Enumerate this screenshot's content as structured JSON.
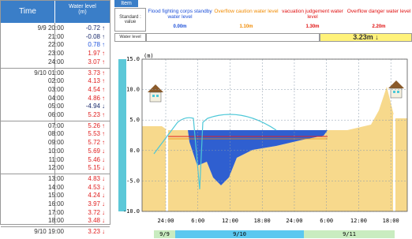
{
  "table": {
    "headers": [
      "Time",
      "Water level",
      "(m)"
    ],
    "rows": [
      {
        "time": "9/9 20:00",
        "level": "-0.72",
        "trend": "↑",
        "color": "#1a2a6c"
      },
      {
        "time": "21:00",
        "level": "-0.08",
        "trend": "↑",
        "color": "#1a2a6c"
      },
      {
        "time": "22:00",
        "level": "0.78",
        "trend": "↑",
        "color": "#2255dd"
      },
      {
        "time": "23:00",
        "level": "1.97",
        "trend": "↑",
        "color": "#e02020"
      },
      {
        "time": "24:00",
        "level": "3.07",
        "trend": "↑",
        "color": "#e02020"
      },
      {
        "time": "9/10 01:00",
        "level": "3.73",
        "trend": "↑",
        "color": "#e02020"
      },
      {
        "time": "02:00",
        "level": "4.13",
        "trend": "↑",
        "color": "#e02020"
      },
      {
        "time": "03:00",
        "level": "4.54",
        "trend": "↑",
        "color": "#e02020"
      },
      {
        "time": "04:00",
        "level": "4.86",
        "trend": "↑",
        "color": "#e02020"
      },
      {
        "time": "05:00",
        "level": "-4.94",
        "trend": "↓",
        "color": "#1a2a6c"
      },
      {
        "time": "06:00",
        "level": "5.23",
        "trend": "↑",
        "color": "#e02020"
      },
      {
        "time": "07:00",
        "level": "5.26",
        "trend": "↑",
        "color": "#e02020"
      },
      {
        "time": "08:00",
        "level": "5.53",
        "trend": "↑",
        "color": "#e02020"
      },
      {
        "time": "09:00",
        "level": "5.72",
        "trend": "↑",
        "color": "#e02020"
      },
      {
        "time": "10:00",
        "level": "5.69",
        "trend": "↓",
        "color": "#e02020"
      },
      {
        "time": "11:00",
        "level": "5.46",
        "trend": "↓",
        "color": "#e02020"
      },
      {
        "time": "12:00",
        "level": "5.15",
        "trend": "↓",
        "color": "#e02020"
      },
      {
        "time": "13:00",
        "level": "4.83",
        "trend": "↓",
        "color": "#e02020"
      },
      {
        "time": "14:00",
        "level": "4.53",
        "trend": "↓",
        "color": "#e02020"
      },
      {
        "time": "15:00",
        "level": "4.24",
        "trend": "↓",
        "color": "#e02020"
      },
      {
        "time": "16:00",
        "level": "3.97",
        "trend": "↓",
        "color": "#e02020"
      },
      {
        "time": "17:00",
        "level": "3.72",
        "trend": "↓",
        "color": "#e02020"
      },
      {
        "time": "18:00",
        "level": "3.48",
        "trend": "↓",
        "color": "#e02020"
      },
      {
        "time": "9/10 19:00",
        "level": "3.23",
        "trend": "↓",
        "color": "#e02020"
      }
    ]
  },
  "header": {
    "item": "Item",
    "standard": "Standard : value",
    "levels": [
      {
        "label": "Flood fighting corps standby water level",
        "value": "0.00m",
        "color": "#1c4fd8"
      },
      {
        "label": "Overflow caution water level",
        "value": "1.10m",
        "color": "#f08a00"
      },
      {
        "label": "vacuation judgement water level",
        "value": "1.30m",
        "color": "#e01010"
      },
      {
        "label": "Overflow danger water level",
        "value": "2.20m",
        "color": "#e01010"
      }
    ],
    "water_level_label": "Water level",
    "current": "3.23m ↓"
  },
  "chart_data": {
    "type": "area",
    "y_unit": "(m)",
    "ylim": [
      -10,
      15
    ],
    "yticks": [
      {
        "value": 15,
        "label": "15.0"
      },
      {
        "value": 10,
        "label": "10.0"
      },
      {
        "value": 5,
        "label": "5.0"
      },
      {
        "value": 0,
        "label": "0.0"
      },
      {
        "value": -5,
        "label": "-5.0"
      },
      {
        "value": -10,
        "label": "-10.0"
      }
    ],
    "xticks": [
      "24:00",
      "6:00",
      "12:00",
      "18:00",
      "24:00",
      "6:00",
      "12:00",
      "18:00"
    ],
    "dates": [
      "9/9",
      "9/10",
      "9/11"
    ],
    "grid": true
  }
}
